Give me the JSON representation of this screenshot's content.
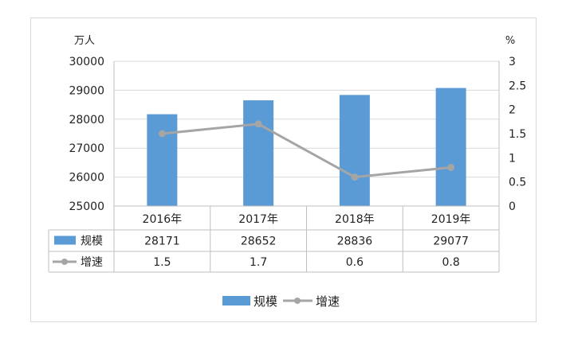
{
  "chart_data": {
    "type": "bar",
    "categories": [
      "2016年",
      "2017年",
      "2018年",
      "2019年"
    ],
    "series": [
      {
        "name": "规模",
        "type": "bar",
        "axis": "left",
        "color": "#5b9bd5",
        "values": [
          28171,
          28652,
          28836,
          29077
        ]
      },
      {
        "name": "增速",
        "type": "line",
        "axis": "right",
        "color": "#a5a5a5",
        "values": [
          1.5,
          1.7,
          0.6,
          0.8
        ]
      }
    ],
    "y_left": {
      "unit": "万人",
      "ylim": [
        25000,
        30000
      ],
      "ticks": [
        "25000",
        "26000",
        "27000",
        "28000",
        "29000",
        "30000"
      ]
    },
    "y_right": {
      "unit": "%",
      "ylim": [
        0,
        3
      ],
      "ticks": [
        "0",
        "0.5",
        "1",
        "1.5",
        "2",
        "2.5",
        "3"
      ]
    },
    "data_table": {
      "rows": [
        {
          "label": "规模",
          "values": [
            "28171",
            "28652",
            "28836",
            "29077"
          ]
        },
        {
          "label": "增速",
          "values": [
            "1.5",
            "1.7",
            "0.6",
            "0.8"
          ]
        }
      ]
    },
    "legend": {
      "position": "bottom",
      "items": [
        "规模",
        "增速"
      ]
    },
    "grid": true
  }
}
